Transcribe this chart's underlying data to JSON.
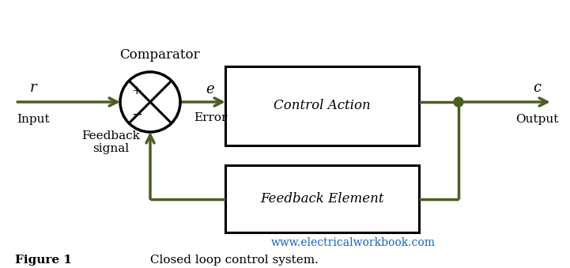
{
  "bg_color": "#ffffff",
  "line_color": "#4a5e23",
  "box_border_color": "#000000",
  "circle_color": "#000000",
  "text_color": "#000000",
  "url_color": "#1565c0",
  "figure_caption": "Figure 1",
  "caption_text": " Closed loop control system.",
  "url_text": "www.electricalworkbook.com",
  "comparator_label": "Comparator",
  "control_action_label": "Control Action",
  "feedback_element_label": "Feedback Element",
  "r_label": "r",
  "input_label": "Input",
  "c_label": "c",
  "output_label": "Output",
  "e_label": "e",
  "error_label": "Error",
  "plus_label": "+",
  "minus_label": "−",
  "feedback_signal_label": "Feedback\nsignal",
  "line_lw": 2.5,
  "figw": 7.21,
  "figh": 3.39,
  "dpi": 100
}
